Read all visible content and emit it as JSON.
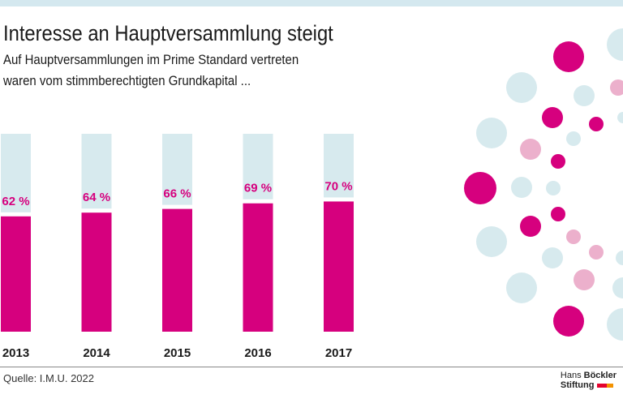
{
  "header": {
    "title": "Interesse an Hauptversammlung steigt",
    "subtitle_line1": "Auf Hauptversammlungen im Prime Standard vertreten",
    "subtitle_line2": "waren vom stimmberechtigten Grundkapital ..."
  },
  "chart_data": {
    "type": "bar",
    "categories": [
      "2013",
      "2014",
      "2015",
      "2016",
      "2017"
    ],
    "values": [
      62,
      64,
      66,
      69,
      70
    ],
    "value_labels": [
      "62 %",
      "64 %",
      "66 %",
      "69 %",
      "70 %"
    ],
    "ylim": [
      0,
      100
    ],
    "grid": false,
    "colors": {
      "bar": "#d6007e",
      "background_bar": "#d7eaee",
      "label": "#d6007e"
    }
  },
  "footer": {
    "source": "Quelle: I.M.U. 2022",
    "logo_line1_a": "Hans",
    "logo_line1_b": "Böckler",
    "logo_line2": "Stiftung"
  },
  "decoration": {
    "colors": {
      "pink": "#d6007e",
      "light_pink": "#ecb0cc",
      "light_blue": "#d7eaee"
    }
  }
}
